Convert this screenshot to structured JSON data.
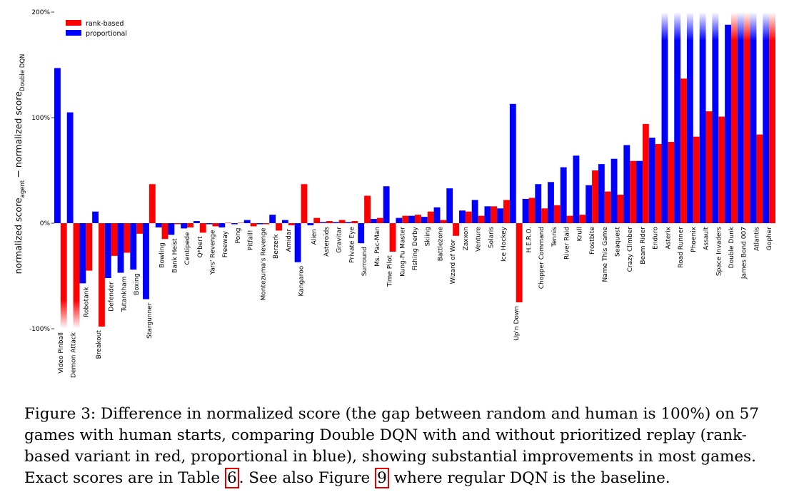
{
  "chart_data": {
    "type": "bar",
    "ylabel": "normalized score",
    "ylabel_sub1": "agent",
    "ylabel_dash": "−",
    "ylabel_sub2": "Double DQN",
    "ylim": [
      -100,
      200
    ],
    "yticks": [
      "-100%",
      "0%",
      "100%",
      "200%"
    ],
    "grid": false,
    "legend_position": "top-left",
    "categories": [
      "Video Pinball",
      "Demon Attack",
      "Robotank",
      "Breakout",
      "Defender",
      "Tutankham",
      "Boxing",
      "Stargunner",
      "Bowling",
      "Bank Heist",
      "Centipede",
      "Q*bert",
      "Yars' Revenge",
      "Freeway",
      "Pong",
      "Pitfall!",
      "Montezuma's Revenge",
      "Berzerk",
      "Amidar",
      "Kangaroo",
      "Alien",
      "Asteroids",
      "Gravitar",
      "Private Eye",
      "Surround",
      "Ms. Pac-Man",
      "Time Pilot",
      "Kung-Fu Master",
      "Fishing Derby",
      "Skiing",
      "Battlezone",
      "Wizard of Wor",
      "Zaxxon",
      "Venture",
      "Solaris",
      "Ice Hockey",
      "Up'n Down",
      "H.E.R.O.",
      "Chopper Command",
      "Tennis",
      "River Raid",
      "Krull",
      "Frostbite",
      "Name This Game",
      "Seaquest",
      "Crazy Climber",
      "Beam Rider",
      "Enduro",
      "Asterix",
      "Road Runner",
      "Phoenix",
      "Assault",
      "Space Invaders",
      "Double Dunk",
      "James Bond 007",
      "Atlantis",
      "Gopher"
    ],
    "series": [
      {
        "name": "rank-based",
        "color": "#ff0000",
        "values": [
          -100,
          -100,
          -45,
          -98,
          -31,
          -28,
          -10,
          37,
          -15,
          -1,
          -4,
          -9,
          -3,
          0,
          0,
          -3,
          -1,
          -7,
          -2,
          37,
          5,
          2,
          3,
          2,
          26,
          5,
          -27,
          7,
          8,
          11,
          3,
          -12,
          11,
          7,
          16,
          22,
          -75,
          24,
          14,
          17,
          7,
          8,
          50,
          30,
          27,
          59,
          94,
          75,
          77,
          137,
          82,
          106,
          101,
          200,
          200,
          84,
          200
        ]
      },
      {
        "name": "proportional",
        "color": "#0000ff",
        "values": [
          147,
          105,
          -57,
          11,
          -52,
          -47,
          -44,
          -72,
          -4,
          -11,
          -5,
          2,
          -1,
          -4,
          -1,
          3,
          -1,
          8,
          3,
          -37,
          -2,
          1,
          1,
          1,
          -19,
          4,
          35,
          5,
          7,
          6,
          15,
          33,
          12,
          22,
          16,
          14,
          113,
          23,
          37,
          39,
          53,
          64,
          36,
          56,
          61,
          74,
          59,
          81,
          200,
          200,
          200,
          200,
          200,
          188,
          200,
          200,
          200
        ]
      }
    ],
    "clipped_note": "bars exceeding the axis range fade out at the clip edge"
  },
  "caption": {
    "part1": "Figure 3:   Difference in normalized score (the gap between random and human is 100%) on 57 games with human starts, comparing Double DQN with and without prioritized replay (rank-based variant in red, proportional in blue), showing substantial improvements in most games. Exact scores are in Table ",
    "ref_table": "6",
    "part2": ". See also Figure ",
    "ref_figure": "9",
    "part3": " where regular DQN is the baseline."
  }
}
